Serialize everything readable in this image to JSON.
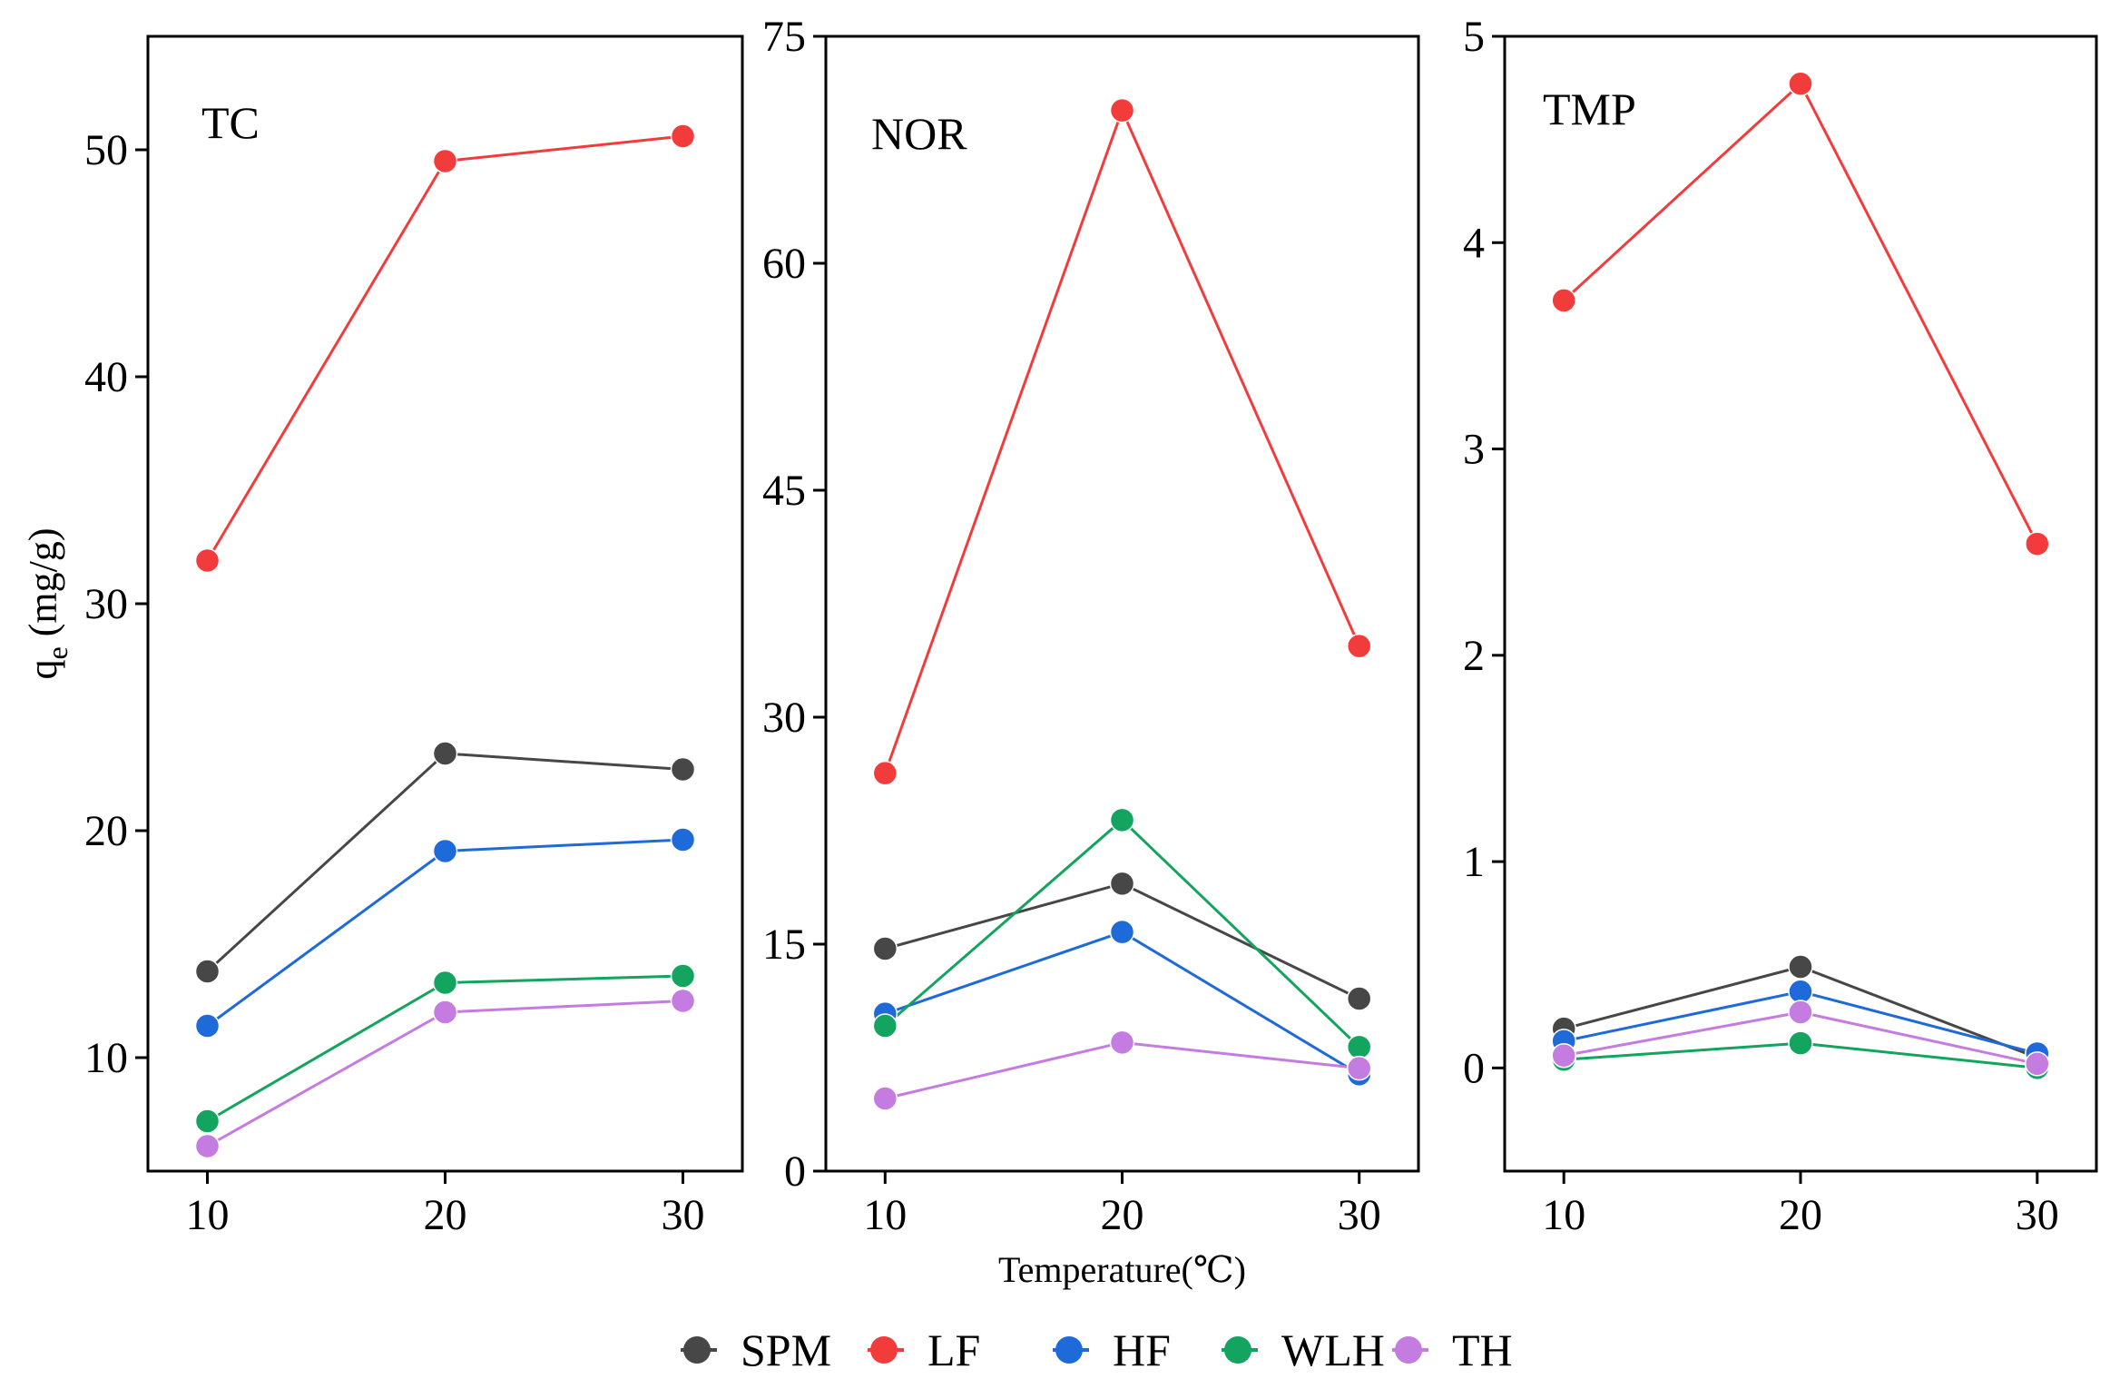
{
  "chart_data": [
    {
      "type": "line",
      "title": "TC",
      "xlabel": "",
      "ylabel": "q_e (mg/g)",
      "ylabel_main": "q",
      "ylabel_sub": "e",
      "ylabel_unit": " (mg/g)",
      "x": [
        10,
        20,
        30
      ],
      "xlim": [
        7.5,
        32.5
      ],
      "ylim": [
        5,
        55
      ],
      "yticks": [
        10,
        20,
        30,
        40,
        50
      ],
      "series": [
        {
          "name": "SPM",
          "values": [
            13.8,
            23.4,
            22.7
          ]
        },
        {
          "name": "LF",
          "values": [
            31.9,
            49.5,
            50.6
          ]
        },
        {
          "name": "HF",
          "values": [
            11.4,
            19.1,
            19.6
          ]
        },
        {
          "name": "WLH",
          "values": [
            7.2,
            13.3,
            13.6
          ]
        },
        {
          "name": "TH",
          "values": [
            6.1,
            12.0,
            12.5
          ]
        }
      ]
    },
    {
      "type": "line",
      "title": "NOR",
      "xlabel": "Temperature(℃)",
      "ylabel": "",
      "x": [
        10,
        20,
        30
      ],
      "xlim": [
        7.5,
        32.5
      ],
      "ylim": [
        0,
        75
      ],
      "yticks": [
        0,
        15,
        30,
        45,
        60,
        75
      ],
      "series": [
        {
          "name": "SPM",
          "values": [
            14.7,
            19.0,
            11.4
          ]
        },
        {
          "name": "LF",
          "values": [
            26.3,
            70.1,
            34.7
          ]
        },
        {
          "name": "HF",
          "values": [
            10.4,
            15.8,
            6.4
          ]
        },
        {
          "name": "WLH",
          "values": [
            9.6,
            23.2,
            8.2
          ]
        },
        {
          "name": "TH",
          "values": [
            4.8,
            8.5,
            6.8
          ]
        }
      ]
    },
    {
      "type": "line",
      "title": "TMP",
      "xlabel": "",
      "ylabel": "",
      "x": [
        10,
        20,
        30
      ],
      "xlim": [
        7.5,
        32.5
      ],
      "ylim": [
        -0.5,
        5
      ],
      "yticks": [
        0,
        1,
        2,
        3,
        4,
        5
      ],
      "series": [
        {
          "name": "SPM",
          "values": [
            0.19,
            0.49,
            0.05
          ]
        },
        {
          "name": "LF",
          "values": [
            3.72,
            4.77,
            2.54
          ]
        },
        {
          "name": "HF",
          "values": [
            0.13,
            0.37,
            0.07
          ]
        },
        {
          "name": "WLH",
          "values": [
            0.04,
            0.12,
            0.0
          ]
        },
        {
          "name": "TH",
          "values": [
            0.06,
            0.27,
            0.02
          ]
        }
      ]
    }
  ],
  "legend": {
    "placement": "bottom-center",
    "items": [
      {
        "name": "SPM",
        "color": "#474747"
      },
      {
        "name": "LF",
        "color": "#f23c3c"
      },
      {
        "name": "HF",
        "color": "#1e6ad9"
      },
      {
        "name": "WLH",
        "color": "#13a45f"
      },
      {
        "name": "TH",
        "color": "#c47ce0"
      }
    ]
  }
}
